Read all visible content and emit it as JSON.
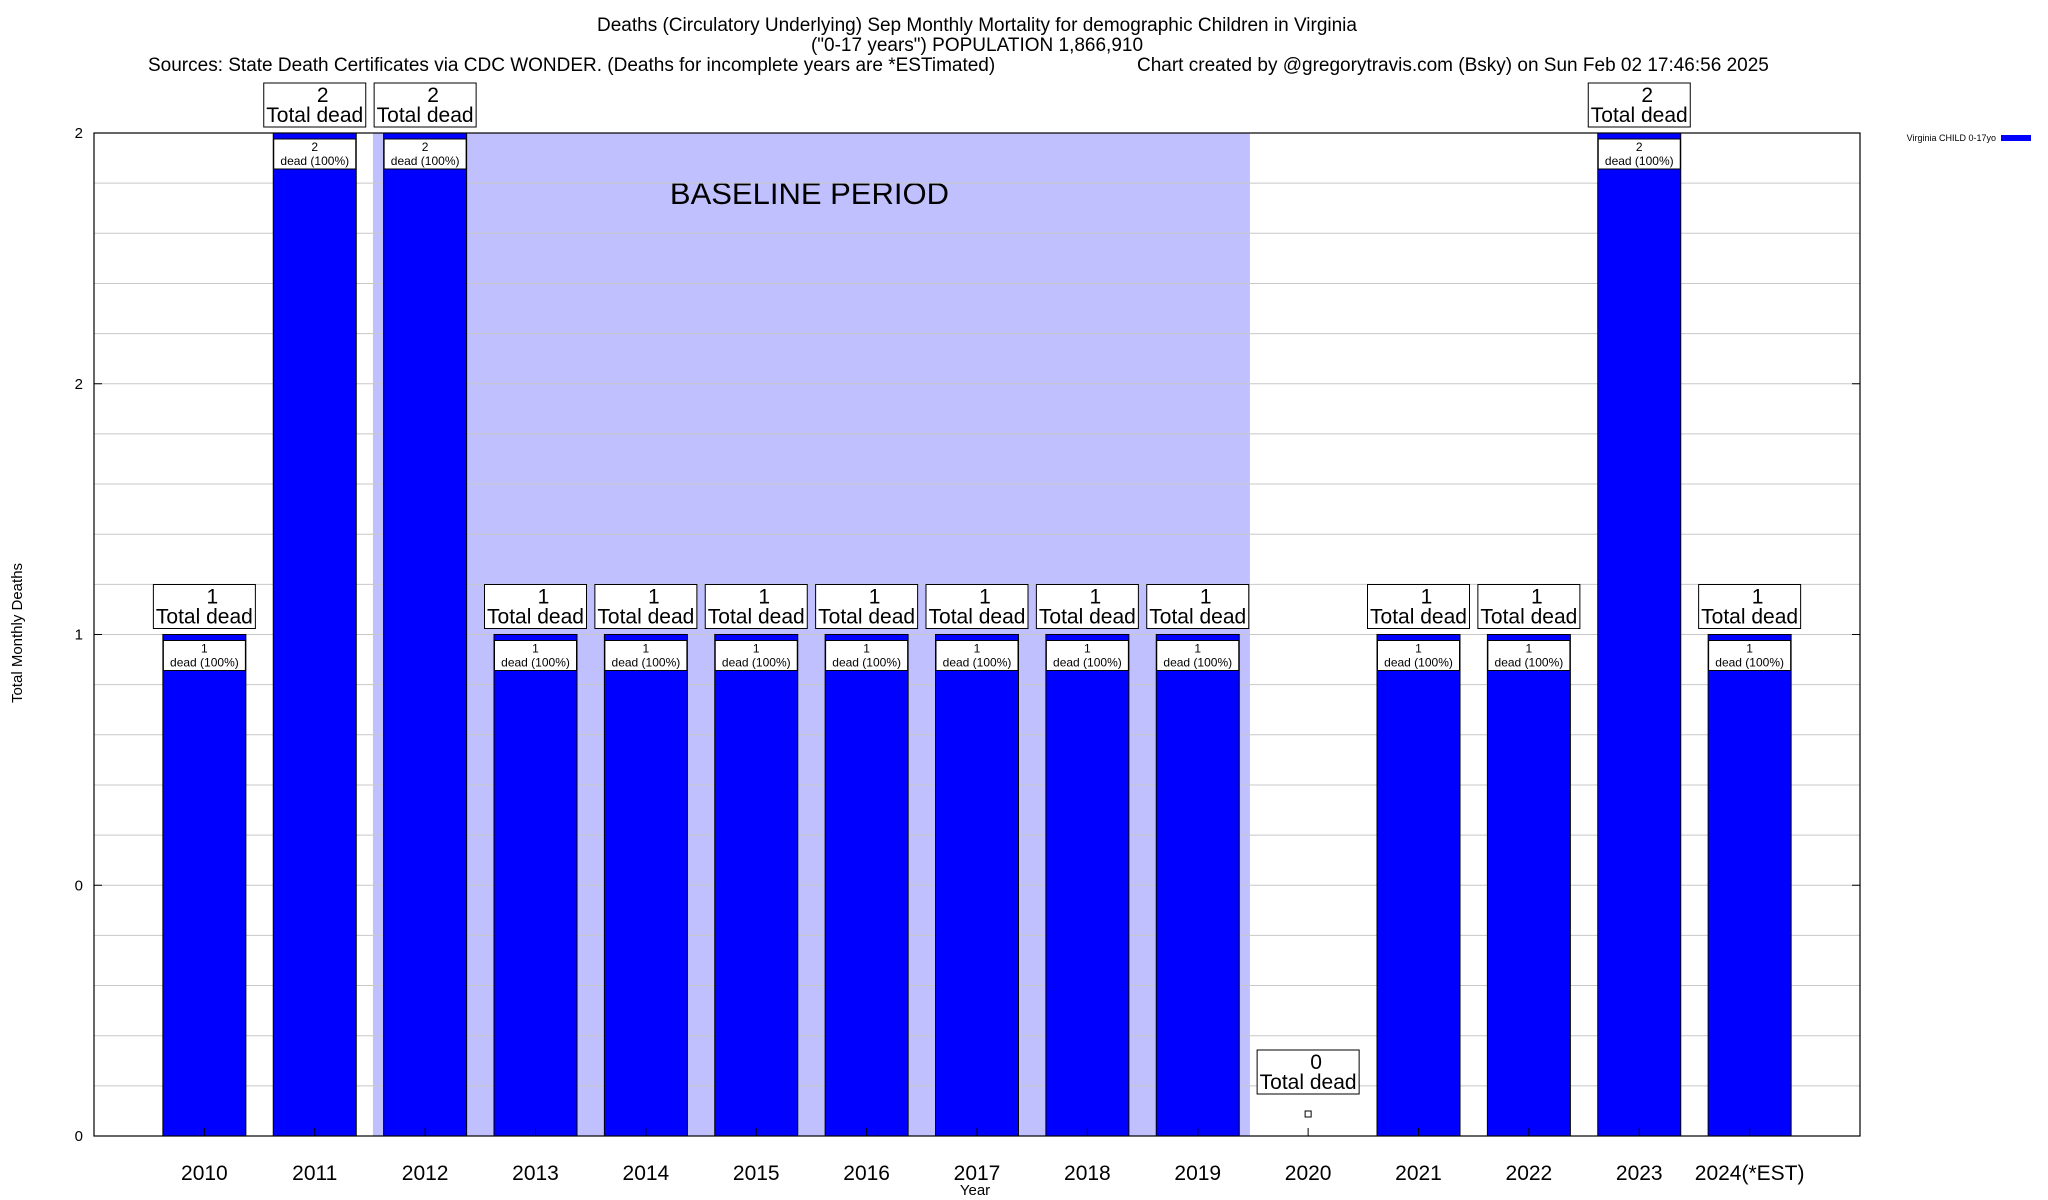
{
  "chart_data": {
    "type": "bar",
    "title_lines": [
      "Deaths (Circulatory Underlying) Sep Monthly Mortality for demographic Children in Virginia",
      "(\"0-17 years\") POPULATION 1,866,910"
    ],
    "sources_text": "Sources: State Death Certificates via CDC WONDER. (Deaths for incomplete years are *ESTimated)",
    "credit_text": "Chart created by @gregorytravis.com (Bsky) on Sun Feb 02 17:46:56 2025",
    "xlabel": "Year",
    "ylabel": "Total Monthly Deaths",
    "categories": [
      "2010",
      "2011",
      "2012",
      "2013",
      "2014",
      "2015",
      "2016",
      "2017",
      "2018",
      "2019",
      "2020",
      "2021",
      "2022",
      "2023",
      "2024(*EST)"
    ],
    "series": [
      {
        "name": "Virginia CHILD 0-17yo",
        "color": "#0000ff",
        "values": [
          1,
          2,
          2,
          1,
          1,
          1,
          1,
          1,
          1,
          1,
          0,
          1,
          1,
          2,
          1
        ]
      }
    ],
    "ylim": [
      0,
      2
    ],
    "y_tick_values": [
      0,
      0.5,
      1,
      1.5,
      2
    ],
    "y_tick_labels": [
      "0",
      "0",
      "1",
      "2",
      "2"
    ],
    "total_label_suffix": "Total dead",
    "inner_label_suffix": "dead (100%)",
    "baseline_band": {
      "label": "BASELINE PERIOD",
      "from": "2012",
      "to": "2019",
      "color": "#c0c0ff"
    },
    "legend_position": "top-right",
    "grid": true
  }
}
